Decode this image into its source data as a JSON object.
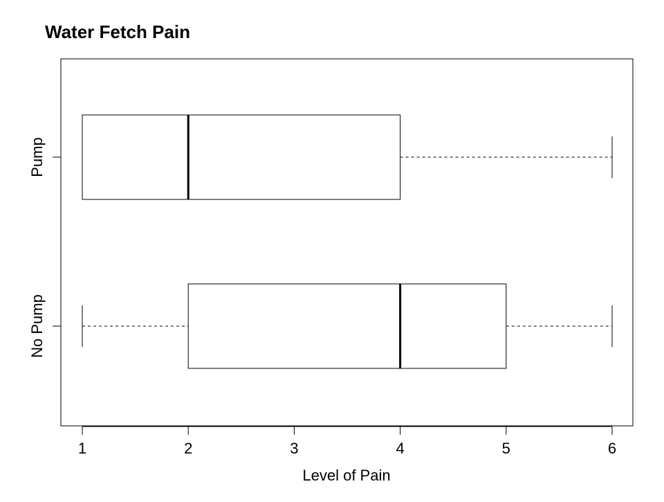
{
  "chart_data": {
    "type": "boxplot",
    "orientation": "horizontal",
    "title": "Water Fetch Pain",
    "xlabel": "Level of Pain",
    "ylabel": "",
    "xlim": [
      0.8,
      6.2
    ],
    "xticks": [
      1,
      2,
      3,
      4,
      5,
      6
    ],
    "xtick_labels": [
      "1",
      "2",
      "3",
      "4",
      "5",
      "6"
    ],
    "grid": false,
    "categories": [
      "No Pump",
      "Pump"
    ],
    "series": [
      {
        "name": "No Pump",
        "whisker_low": 1,
        "q1": 2,
        "median": 4,
        "q3": 5,
        "whisker_high": 6
      },
      {
        "name": "Pump",
        "whisker_low": 1,
        "q1": 1,
        "median": 2,
        "q3": 4,
        "whisker_high": 6
      }
    ]
  }
}
